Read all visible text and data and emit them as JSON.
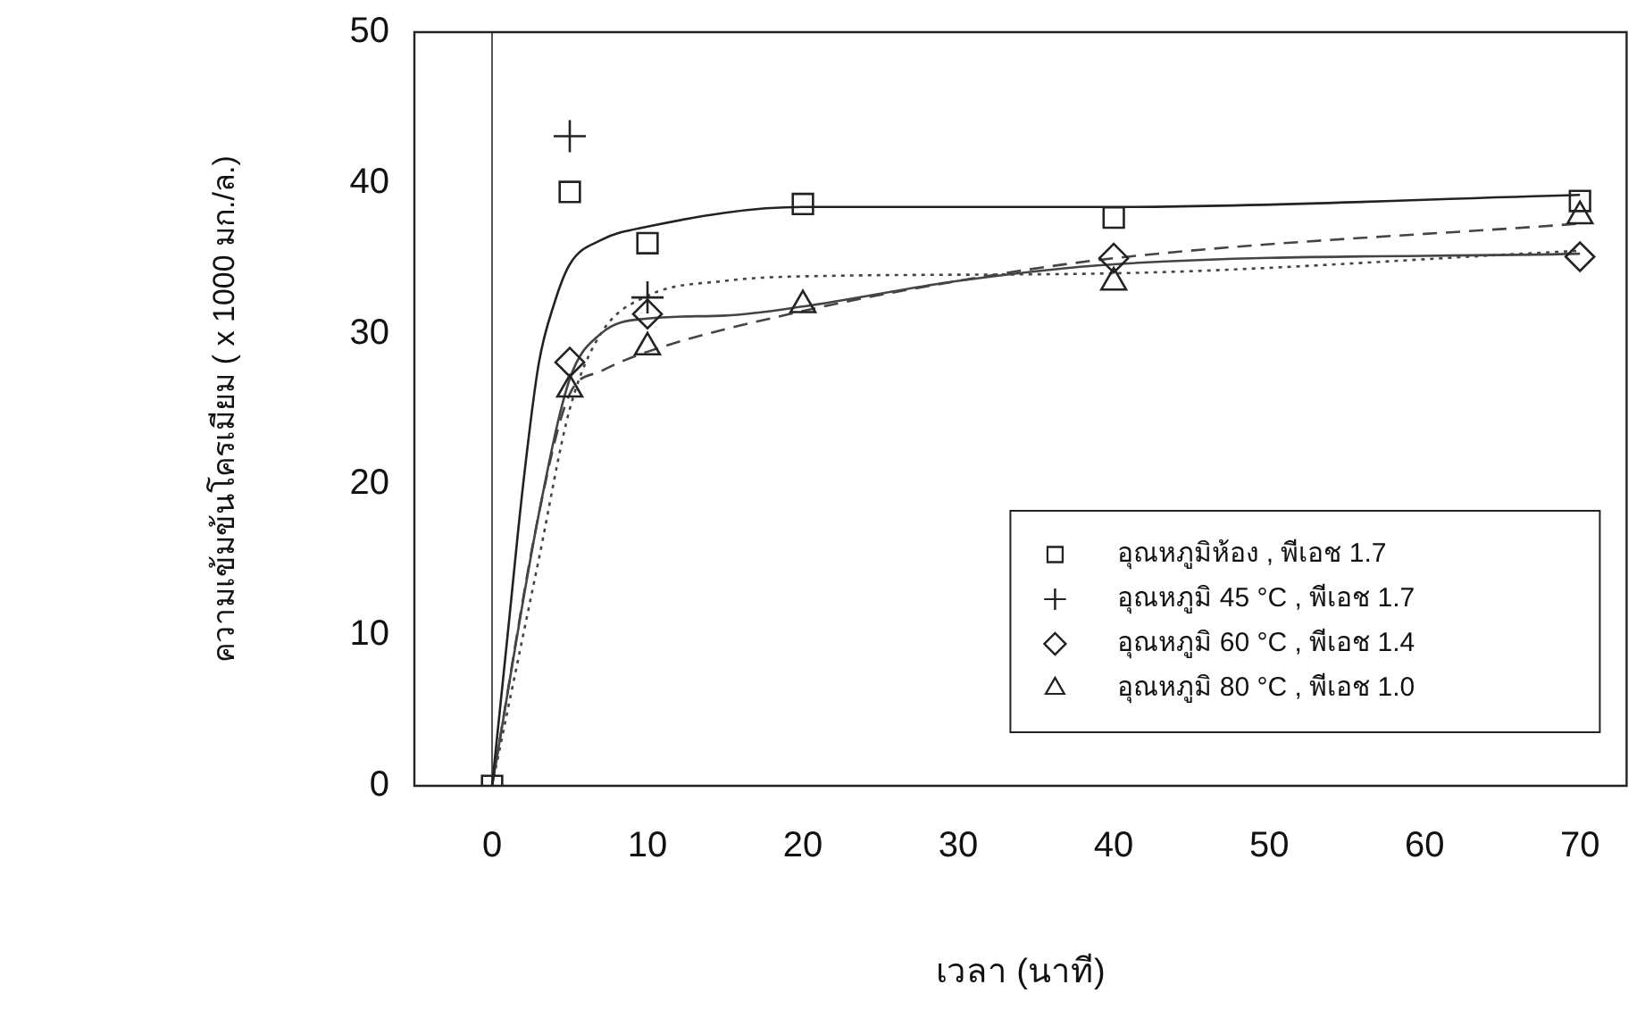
{
  "chart_data": {
    "type": "scatter",
    "xlabel": "เวลา (นาที)",
    "ylabel": "ความเข้มข้นโครเมียม ( x 1000 มก./ล.)",
    "x": [
      0,
      5,
      10,
      20,
      40,
      70
    ],
    "series": [
      {
        "name": "อุณหภูมิห้อง , พีเอช 1.7",
        "color": "#222222",
        "marker": "square",
        "values": [
          0,
          39.4,
          36.0,
          38.6,
          37.7,
          38.8
        ]
      },
      {
        "name": "อุณหภูมิ 45 °C , พีเอช 1.7",
        "color": "#222222",
        "marker": "cross",
        "values": [
          null,
          43.1,
          32.4,
          null,
          null,
          null
        ]
      },
      {
        "name": "อุณหภูมิ 60 °C , พีเอช 1.4",
        "color": "#222222",
        "marker": "diamond",
        "values": [
          null,
          28.1,
          31.3,
          null,
          35.0,
          35.1
        ]
      },
      {
        "name": "อุณหภูมิ 80 °C , พีเอช 1.0",
        "color": "#222222",
        "marker": "triangle",
        "values": [
          null,
          26.3,
          29.1,
          31.9,
          33.4,
          37.8
        ]
      },
      {
        "type": "line",
        "color": "#222222",
        "marker": "none",
        "line_style": "solid",
        "x": [
          0,
          1,
          2,
          3,
          4,
          5,
          7,
          10,
          20,
          40,
          70
        ],
        "values": [
          0,
          10,
          20,
          28,
          32,
          34.6,
          36.2,
          37.1,
          38.4,
          38.4,
          39.2
        ]
      },
      {
        "type": "line",
        "color": "#444444",
        "marker": "none",
        "line_style": "dotted",
        "x": [
          0,
          3,
          5,
          7,
          10,
          15,
          20,
          40,
          70
        ],
        "values": [
          0,
          15,
          25,
          30,
          32.5,
          33.5,
          33.8,
          34.0,
          35.5
        ]
      },
      {
        "type": "line",
        "color": "#444444",
        "marker": "none",
        "line_style": "solid",
        "x": [
          0,
          3,
          5,
          7,
          10,
          15,
          20,
          30,
          40,
          70
        ],
        "values": [
          0,
          18,
          27,
          30,
          31,
          31.2,
          31.8,
          33.5,
          34.6,
          35.3
        ]
      },
      {
        "type": "line",
        "color": "#444444",
        "marker": "none",
        "line_style": "dashed",
        "x": [
          0,
          3,
          5,
          7,
          10,
          20,
          30,
          40,
          70
        ],
        "values": [
          0,
          18,
          26,
          27.5,
          28.8,
          31.5,
          33.5,
          35.0,
          37.3
        ]
      }
    ],
    "xlim": [
      -5,
      73
    ],
    "xticks": [
      0,
      10,
      20,
      30,
      40,
      50,
      60,
      70
    ],
    "ylim": [
      0,
      50
    ],
    "yticks": [
      0,
      10,
      20,
      30,
      40,
      50
    ],
    "ref_lines": [
      {
        "axis": "x",
        "value": 0,
        "color": "#555555"
      }
    ],
    "legend": "bottom right",
    "grid": false
  }
}
